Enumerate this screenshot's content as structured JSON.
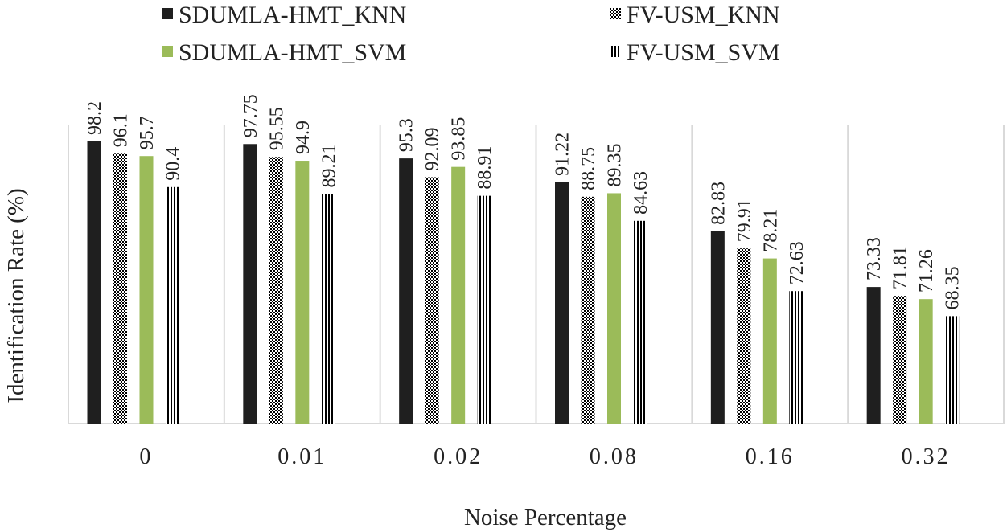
{
  "chart_data": {
    "type": "bar",
    "title": "",
    "xlabel": "Noise Percentage",
    "ylabel": "Identification Rate (%)",
    "ylim": [
      50,
      100
    ],
    "grid": "vertical separators between categories",
    "legend_position": "top",
    "categories": [
      "0",
      "0.01",
      "0.02",
      "0.08",
      "0.16",
      "0.32"
    ],
    "series": [
      {
        "name": "SDUMLA-HMT_KNN",
        "pattern": "solid-black",
        "color": "#1f1f1f",
        "values": [
          98.2,
          97.75,
          95.3,
          91.22,
          82.83,
          73.33
        ],
        "labels": [
          "98.2",
          "97.75",
          "95.3",
          "91.22",
          "82.83",
          "73.33"
        ]
      },
      {
        "name": "FV-USM_KNN",
        "pattern": "checkerboard",
        "color": "#000000",
        "values": [
          96.1,
          95.55,
          92.09,
          88.75,
          79.91,
          71.81
        ],
        "labels": [
          "96.1",
          "95.55",
          "92.09",
          "88.75",
          "79.91",
          "71.81"
        ]
      },
      {
        "name": "SDUMLA-HMT_SVM",
        "pattern": "solid-green",
        "color": "#9bbb59",
        "values": [
          95.7,
          94.9,
          93.85,
          89.35,
          78.21,
          71.26
        ],
        "labels": [
          "95.7",
          "94.9",
          "93.85",
          "89.35",
          "78.21",
          "71.26"
        ]
      },
      {
        "name": "FV-USM_SVM",
        "pattern": "vertical-stripes",
        "color": "#000000",
        "values": [
          90.4,
          89.21,
          88.91,
          84.63,
          72.63,
          68.35
        ],
        "labels": [
          "90.4",
          "89.21",
          "88.91",
          "84.63",
          "72.63",
          "68.35"
        ]
      }
    ]
  }
}
